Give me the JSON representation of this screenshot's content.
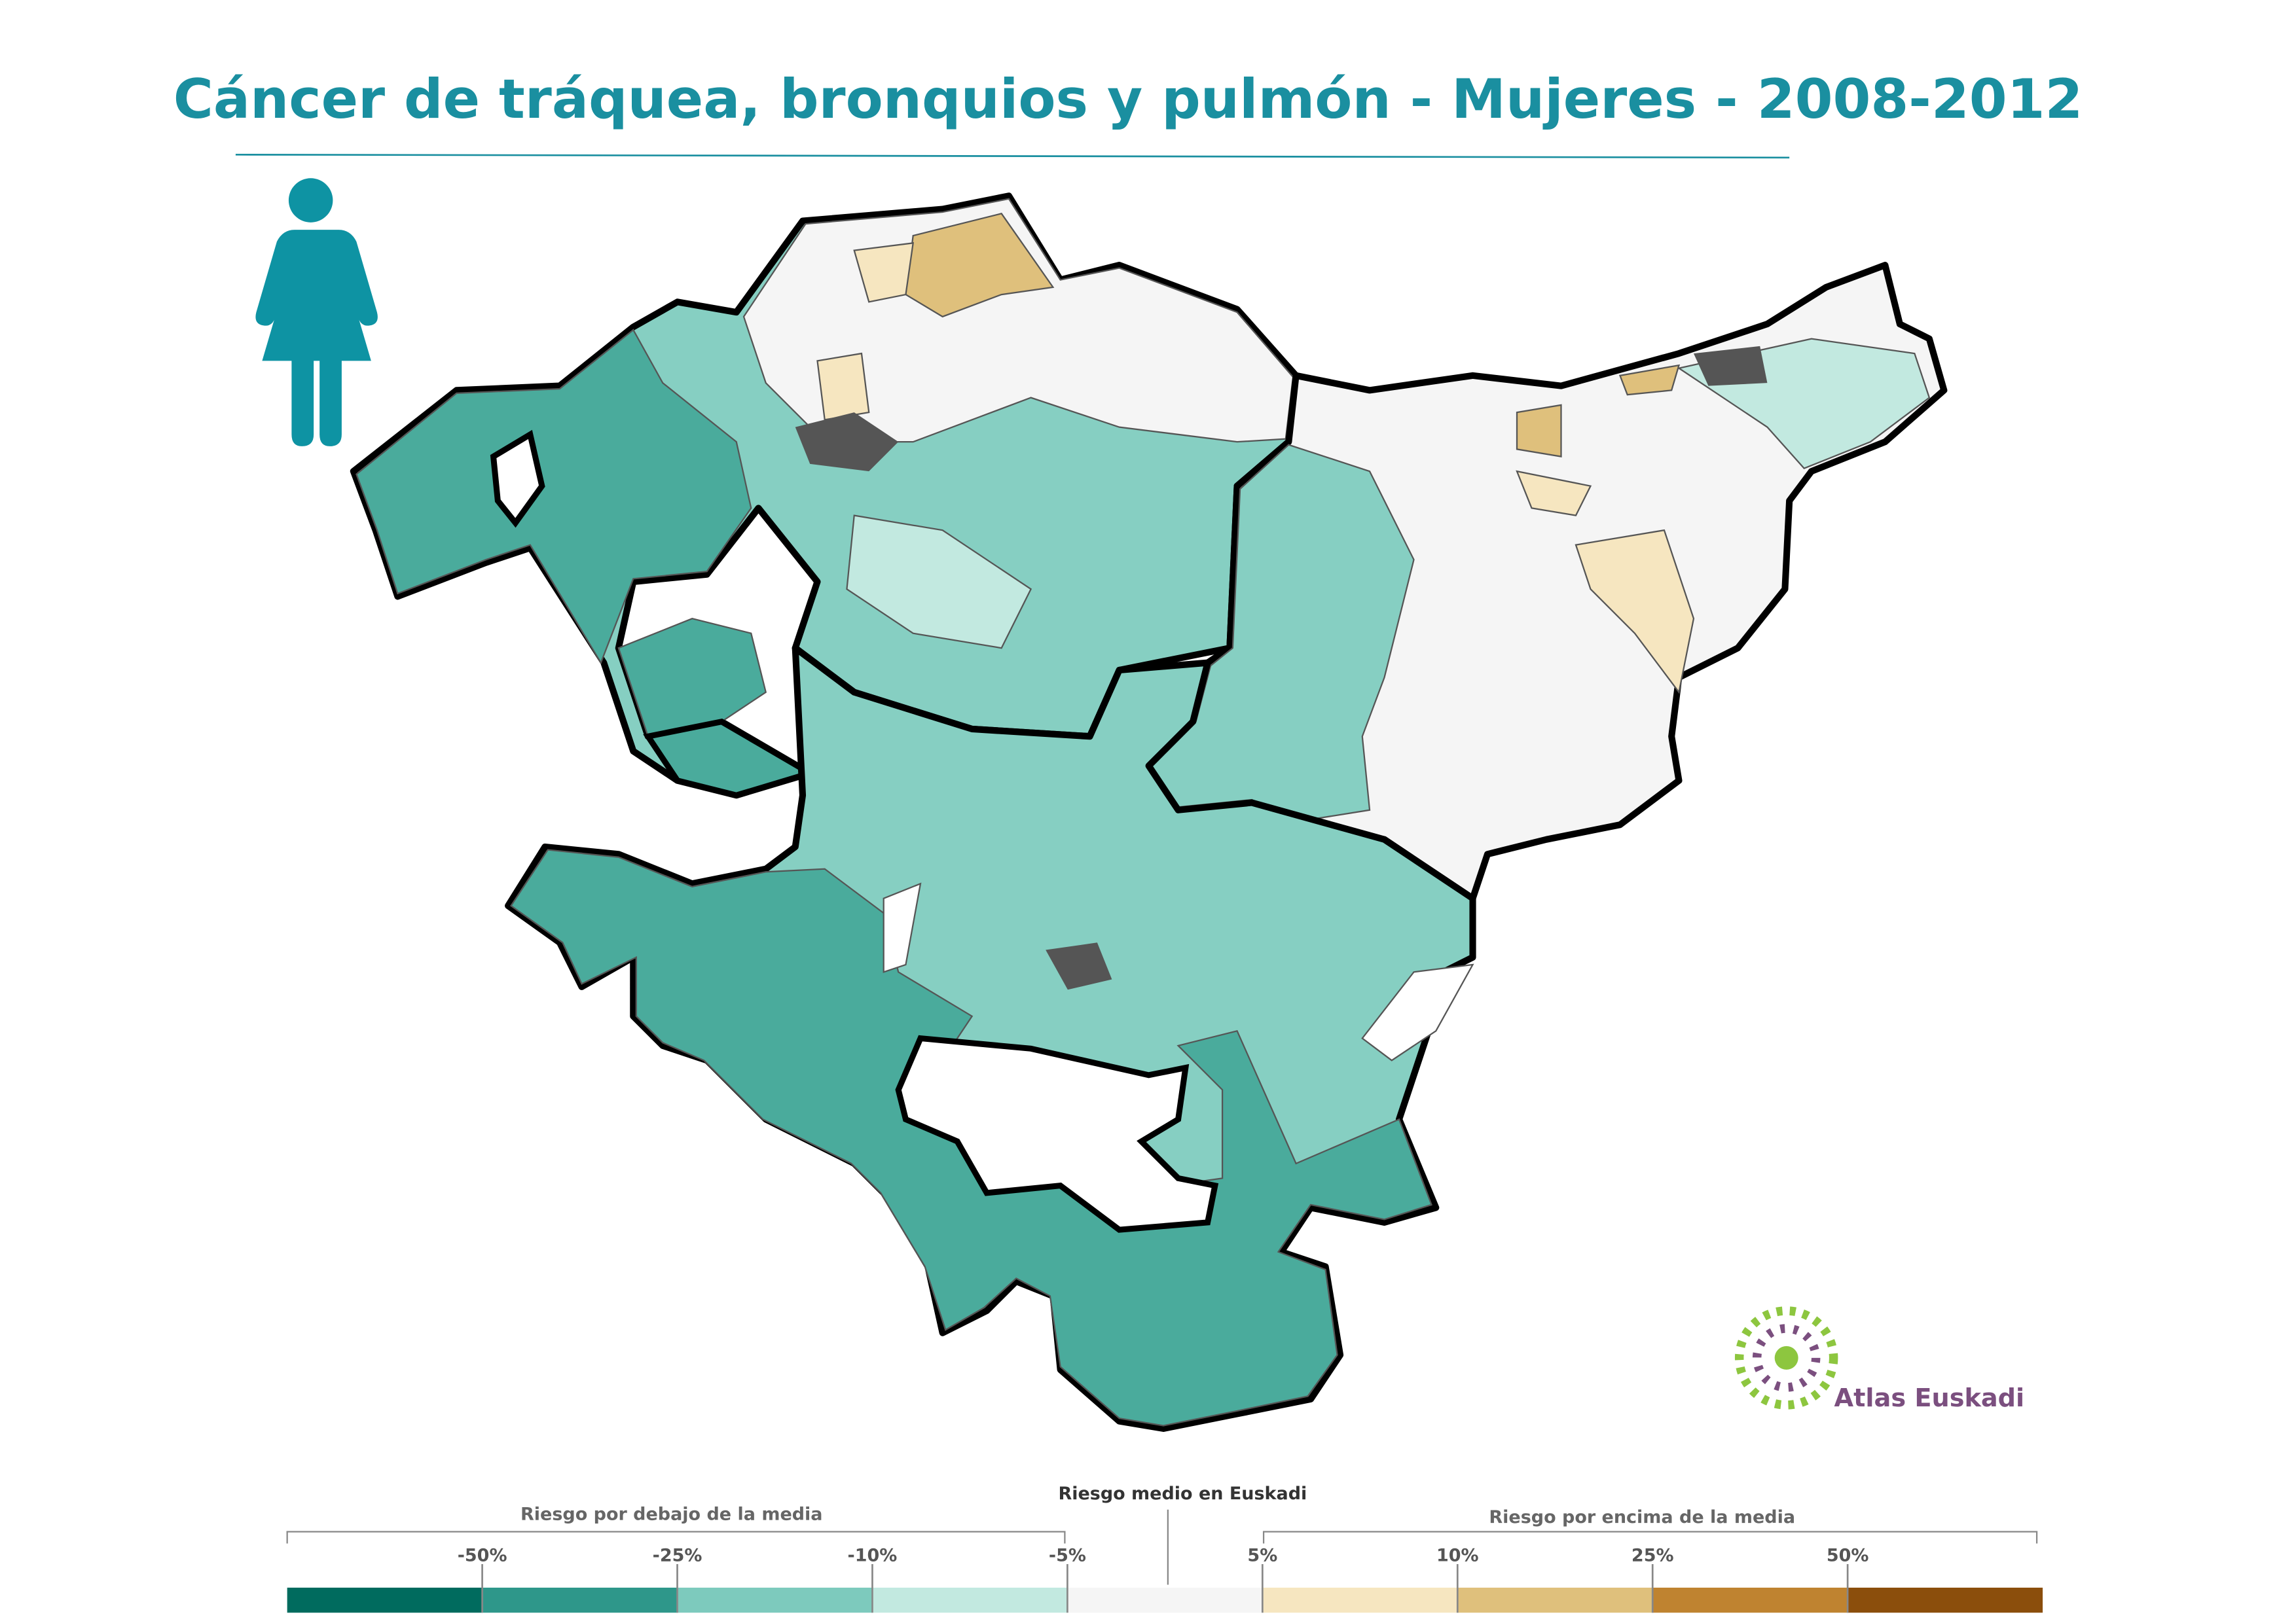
{
  "title": "Cáncer de tráquea, bronquios y pulmón - Mujeres - 2008-2012",
  "logo": {
    "text": "Atlas Euskadi"
  },
  "legend": {
    "below_label": "Riesgo por debajo de la media",
    "mean_label": "Riesgo medio en Euskadi",
    "above_label": "Riesgo por encima de la media",
    "breaks": [
      "-50%",
      "-25%",
      "-10%",
      "-5%",
      "5%",
      "10%",
      "25%",
      "50%"
    ],
    "colors": [
      "#006b5e",
      "#2e978a",
      "#7dcabd",
      "#c2e9e0",
      "#f5f5f5",
      "#f6e6c0",
      "#dfc07c",
      "#bf8330",
      "#8b4e0c"
    ]
  }
}
